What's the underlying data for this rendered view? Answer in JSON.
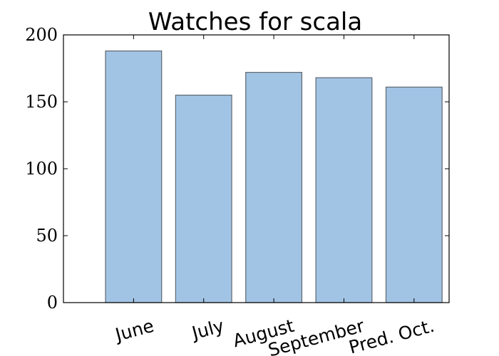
{
  "chart_data": {
    "type": "bar",
    "title": "Watches for scala",
    "xlabel": "",
    "ylabel": "",
    "categories": [
      "June",
      "July",
      "August",
      "September",
      "Pred. Oct."
    ],
    "values": [
      188,
      155,
      172,
      168,
      161
    ],
    "ylim": [
      0,
      200
    ],
    "yticks": [
      "0",
      "50",
      "100",
      "150",
      "200"
    ],
    "grid": false,
    "legend": "none",
    "bar_color": "#a2c4e4",
    "bar_edge_color": "#5e6670"
  }
}
